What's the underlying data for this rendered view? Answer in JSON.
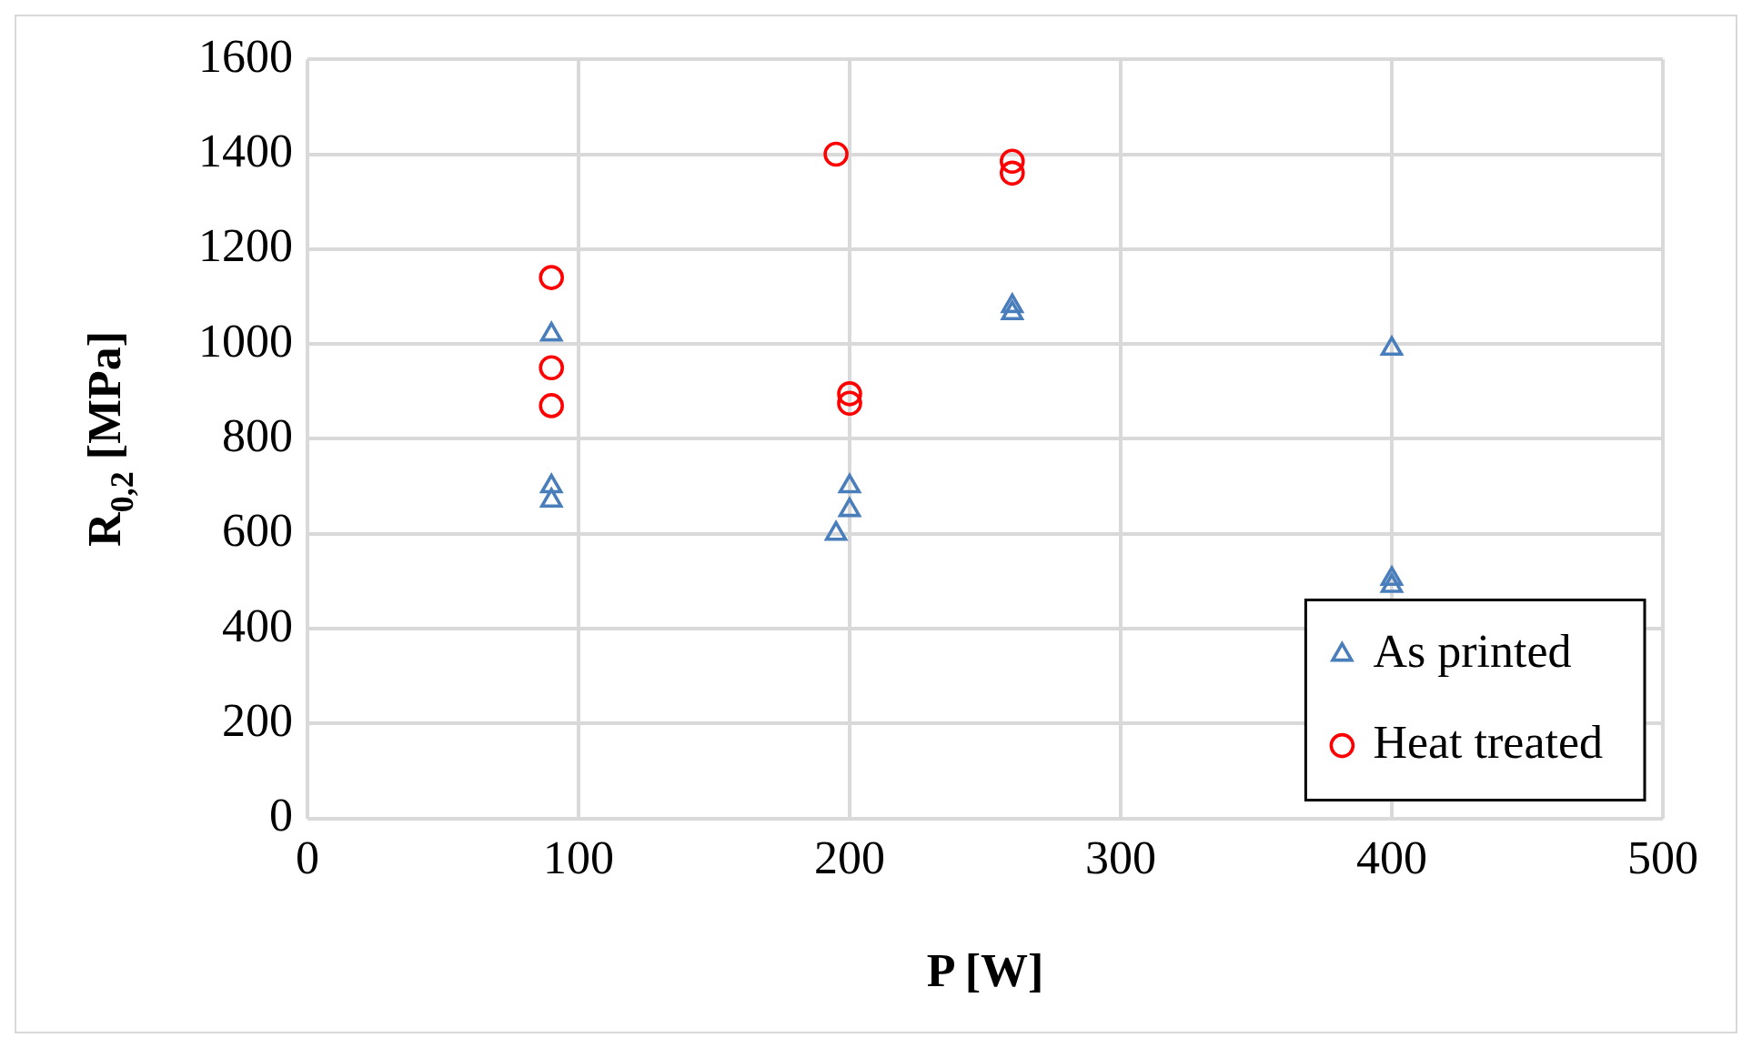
{
  "chart_data": {
    "type": "scatter",
    "xlabel": "P [W]",
    "ylabel": "R$_{0,2}$ [MPa]",
    "xlim": [
      0,
      500
    ],
    "xticks": [
      0,
      100,
      200,
      300,
      400,
      500
    ],
    "ylim": [
      0,
      1600
    ],
    "yticks": [
      0,
      200,
      400,
      600,
      800,
      1000,
      1200,
      1400,
      1600
    ],
    "grid": true,
    "legend": "bottom right",
    "series": [
      {
        "name": "As printed",
        "color": "#4a7ebb",
        "marker": "triangle",
        "x": [
          90,
          90,
          90,
          195,
          200,
          200,
          260,
          260,
          400,
          400,
          400
        ],
        "values": [
          1020,
          700,
          670,
          600,
          650,
          700,
          1065,
          1080,
          990,
          505,
          490
        ]
      },
      {
        "name": "Heat treated",
        "color": "#ff0000",
        "marker": "circle",
        "x": [
          90,
          90,
          90,
          195,
          200,
          200,
          260,
          260
        ],
        "values": [
          1140,
          950,
          870,
          1400,
          875,
          895,
          1360,
          1385
        ]
      }
    ]
  }
}
